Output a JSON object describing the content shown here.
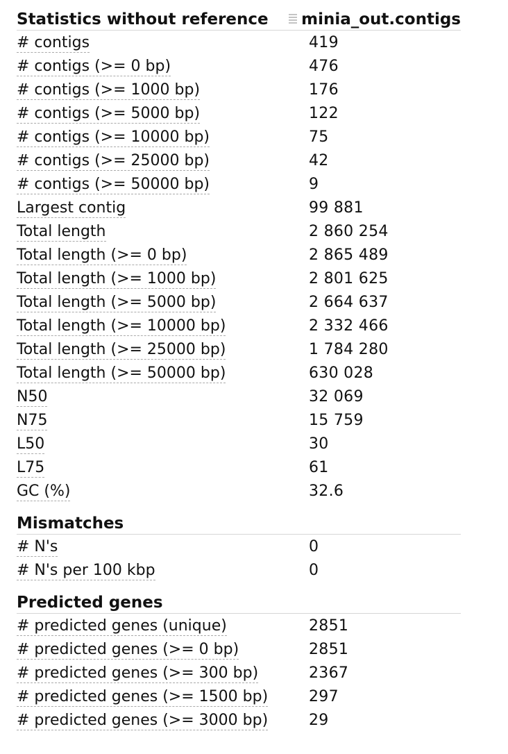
{
  "header": {
    "title": "Statistics without reference",
    "column": "minia_out.contigs"
  },
  "stats": [
    {
      "label": "# contigs",
      "value": "419"
    },
    {
      "label": "# contigs (>= 0 bp)",
      "value": "476"
    },
    {
      "label": "# contigs (>= 1000 bp)",
      "value": "176"
    },
    {
      "label": "# contigs (>= 5000 bp)",
      "value": "122"
    },
    {
      "label": "# contigs (>= 10000 bp)",
      "value": "75"
    },
    {
      "label": "# contigs (>= 25000 bp)",
      "value": "42"
    },
    {
      "label": "# contigs (>= 50000 bp)",
      "value": "9"
    },
    {
      "label": "Largest contig",
      "value": "99 881"
    },
    {
      "label": "Total length",
      "value": "2 860 254"
    },
    {
      "label": "Total length (>= 0 bp)",
      "value": "2 865 489"
    },
    {
      "label": "Total length (>= 1000 bp)",
      "value": "2 801 625"
    },
    {
      "label": "Total length (>= 5000 bp)",
      "value": "2 664 637"
    },
    {
      "label": "Total length (>= 10000 bp)",
      "value": "2 332 466"
    },
    {
      "label": "Total length (>= 25000 bp)",
      "value": "1 784 280"
    },
    {
      "label": "Total length (>= 50000 bp)",
      "value": "630 028"
    },
    {
      "label": "N50",
      "value": "32 069"
    },
    {
      "label": "N75",
      "value": "15 759"
    },
    {
      "label": "L50",
      "value": "30"
    },
    {
      "label": "L75",
      "value": "61"
    },
    {
      "label": "GC (%)",
      "value": "32.6"
    }
  ],
  "mismatches": {
    "title": "Mismatches",
    "rows": [
      {
        "label": "# N's",
        "value": "0"
      },
      {
        "label": "# N's per 100 kbp",
        "value": "0"
      }
    ]
  },
  "genes": {
    "title": "Predicted genes",
    "rows": [
      {
        "label": "# predicted genes (unique)",
        "value": "2851"
      },
      {
        "label": "# predicted genes (>= 0 bp)",
        "value": "2851"
      },
      {
        "label": "# predicted genes (>= 300 bp)",
        "value": "2367"
      },
      {
        "label": "# predicted genes (>= 1500 bp)",
        "value": "297"
      },
      {
        "label": "# predicted genes (>= 3000 bp)",
        "value": "29"
      }
    ]
  }
}
